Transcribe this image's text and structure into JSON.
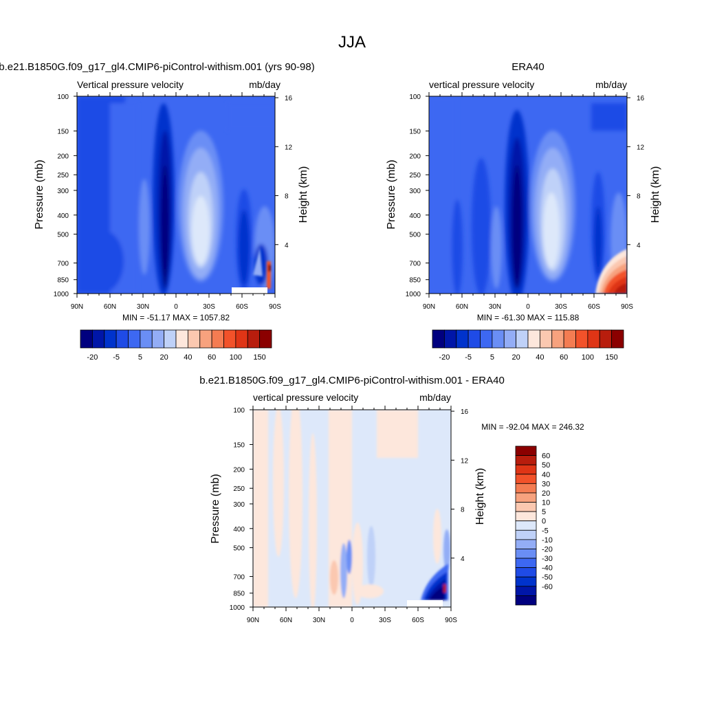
{
  "figure": {
    "title": "JJA",
    "colors": {
      "abs_scale": [
        "#00007f",
        "#0016a8",
        "#0033cc",
        "#1f4be6",
        "#3d68f2",
        "#6a8ef5",
        "#93adf6",
        "#bfd1f8",
        "#fde7dc",
        "#fbc8b0",
        "#f7a27e",
        "#f47c52",
        "#f2522a",
        "#df3516",
        "#b81d0d",
        "#8b0000"
      ],
      "diff_scale": [
        "#00007f",
        "#0016a8",
        "#0033cc",
        "#1f4be6",
        "#3d68f2",
        "#6a8ef5",
        "#93adf6",
        "#bfd1f8",
        "#dde8fa",
        "#fde7dc",
        "#fbc8b0",
        "#f7a27e",
        "#f47c52",
        "#f2522a",
        "#df3516",
        "#b81d0d",
        "#8b0000"
      ]
    }
  },
  "chart_data": [
    {
      "type": "heatmap",
      "title": "b.e21.B1850G.f09_g17_gl4.CMIP6-piControl-withism.001 (yrs 90-98)",
      "left_subtitle": "Vertical pressure velocity",
      "right_subtitle": "mb/day",
      "ylabel": "Pressure (mb)",
      "ylabel_right": "Height (km)",
      "x_ticks": [
        "90N",
        "60N",
        "30N",
        "0",
        "30S",
        "60S",
        "90S"
      ],
      "y_ticks": [
        100,
        150,
        200,
        250,
        300,
        400,
        500,
        700,
        850,
        1000
      ],
      "y_right_ticks": [
        16,
        12,
        8,
        4
      ],
      "ylim": [
        1000,
        100
      ],
      "xlim": [
        90,
        -90
      ],
      "stats": "MIN = -51.17  MAX = 1057.82",
      "colorbar_labels": [
        "-20",
        "-5",
        "5",
        "20",
        "40",
        "60",
        "100",
        "150"
      ]
    },
    {
      "type": "heatmap",
      "title": "ERA40",
      "left_subtitle": "vertical pressure velocity",
      "right_subtitle": "mb/day",
      "ylabel": "Pressure (mb)",
      "ylabel_right": "Height (km)",
      "x_ticks": [
        "90N",
        "60N",
        "30N",
        "0",
        "30S",
        "60S",
        "90S"
      ],
      "y_ticks": [
        100,
        150,
        200,
        250,
        300,
        400,
        500,
        700,
        850,
        1000
      ],
      "y_right_ticks": [
        16,
        12,
        8,
        4
      ],
      "ylim": [
        1000,
        100
      ],
      "xlim": [
        90,
        -90
      ],
      "stats": "MIN = -61.30  MAX = 115.88",
      "colorbar_labels": [
        "-20",
        "-5",
        "5",
        "20",
        "40",
        "60",
        "100",
        "150"
      ]
    },
    {
      "type": "heatmap",
      "title": "b.e21.B1850G.f09_g17_gl4.CMIP6-piControl-withism.001 - ERA40",
      "left_subtitle": "vertical pressure velocity",
      "right_subtitle": "mb/day",
      "ylabel": "Pressure (mb)",
      "ylabel_right": "Height (km)",
      "x_ticks": [
        "90N",
        "60N",
        "30N",
        "0",
        "30S",
        "60S",
        "90S"
      ],
      "y_ticks": [
        100,
        150,
        200,
        250,
        300,
        400,
        500,
        700,
        850,
        1000
      ],
      "y_right_ticks": [
        16,
        12,
        8,
        4
      ],
      "ylim": [
        1000,
        100
      ],
      "xlim": [
        90,
        -90
      ],
      "stats": "MIN = -92.04  MAX = 246.32",
      "colorbar_labels": [
        "60",
        "50",
        "40",
        "30",
        "20",
        "10",
        "5",
        "0",
        "-5",
        "-10",
        "-20",
        "-30",
        "-40",
        "-50",
        "-60"
      ]
    }
  ]
}
